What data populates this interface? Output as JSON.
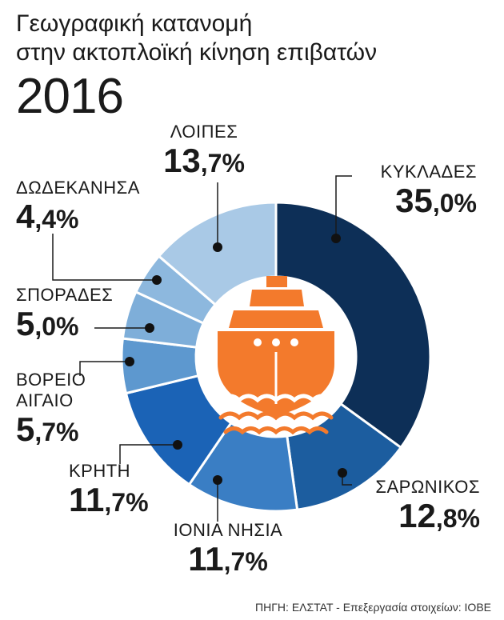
{
  "header": {
    "title_line1": "Γεωγραφική κατανομή",
    "title_line2": "στην ακτοπλοϊκή κίνηση επιβατών",
    "year": "2016"
  },
  "source": "ΠΗΓΗ: ΕΛΣΤΑΤ - Επεξεργασία στοιχείων: ΙΟΒΕ",
  "chart_data": {
    "type": "pie",
    "donut": true,
    "center_icon": "ship-icon",
    "slices": [
      {
        "key": "kyklades",
        "name": "ΚΥΚΛΑΔΕΣ",
        "value": 35.0,
        "int": "35",
        "dec": ",0%",
        "color": "#0d2f57"
      },
      {
        "key": "saronikos",
        "name": "ΣΑΡΩΝΙΚΟΣ",
        "value": 12.8,
        "int": "12",
        "dec": ",8%",
        "color": "#1c5d9f"
      },
      {
        "key": "ionia",
        "name": "ΙΟΝΙΑ ΝΗΣΙΑ",
        "value": 11.7,
        "int": "11",
        "dec": ",7%",
        "color": "#3a7ec4"
      },
      {
        "key": "kriti",
        "name": "ΚΡΗΤΗ",
        "value": 11.7,
        "int": "11",
        "dec": ",7%",
        "color": "#1b63b6"
      },
      {
        "key": "voreio",
        "name": "ΒΟΡΕΙΟ ΑΙΓΑΙΟ",
        "value": 5.7,
        "int": "5",
        "dec": ",7%",
        "color": "#5d98cf"
      },
      {
        "key": "sporades",
        "name": "ΣΠΟΡΑΔΕΣ",
        "value": 5.0,
        "int": "5",
        "dec": ",0%",
        "color": "#7eaed9"
      },
      {
        "key": "dodekanisa",
        "name": "ΔΩΔΕΚΑΝΗΣΑ",
        "value": 4.4,
        "int": "4",
        "dec": ",4%",
        "color": "#8db8de"
      },
      {
        "key": "loipes",
        "name": "ΛΟΙΠΕΣ",
        "value": 13.7,
        "int": "13",
        "dec": ",7%",
        "color": "#a9c9e6"
      }
    ],
    "voreio_name_lines": [
      "ΒΟΡΕΙΟ",
      "ΑΙΓΑΙΟ"
    ],
    "icon_color": "#f37a2c"
  }
}
